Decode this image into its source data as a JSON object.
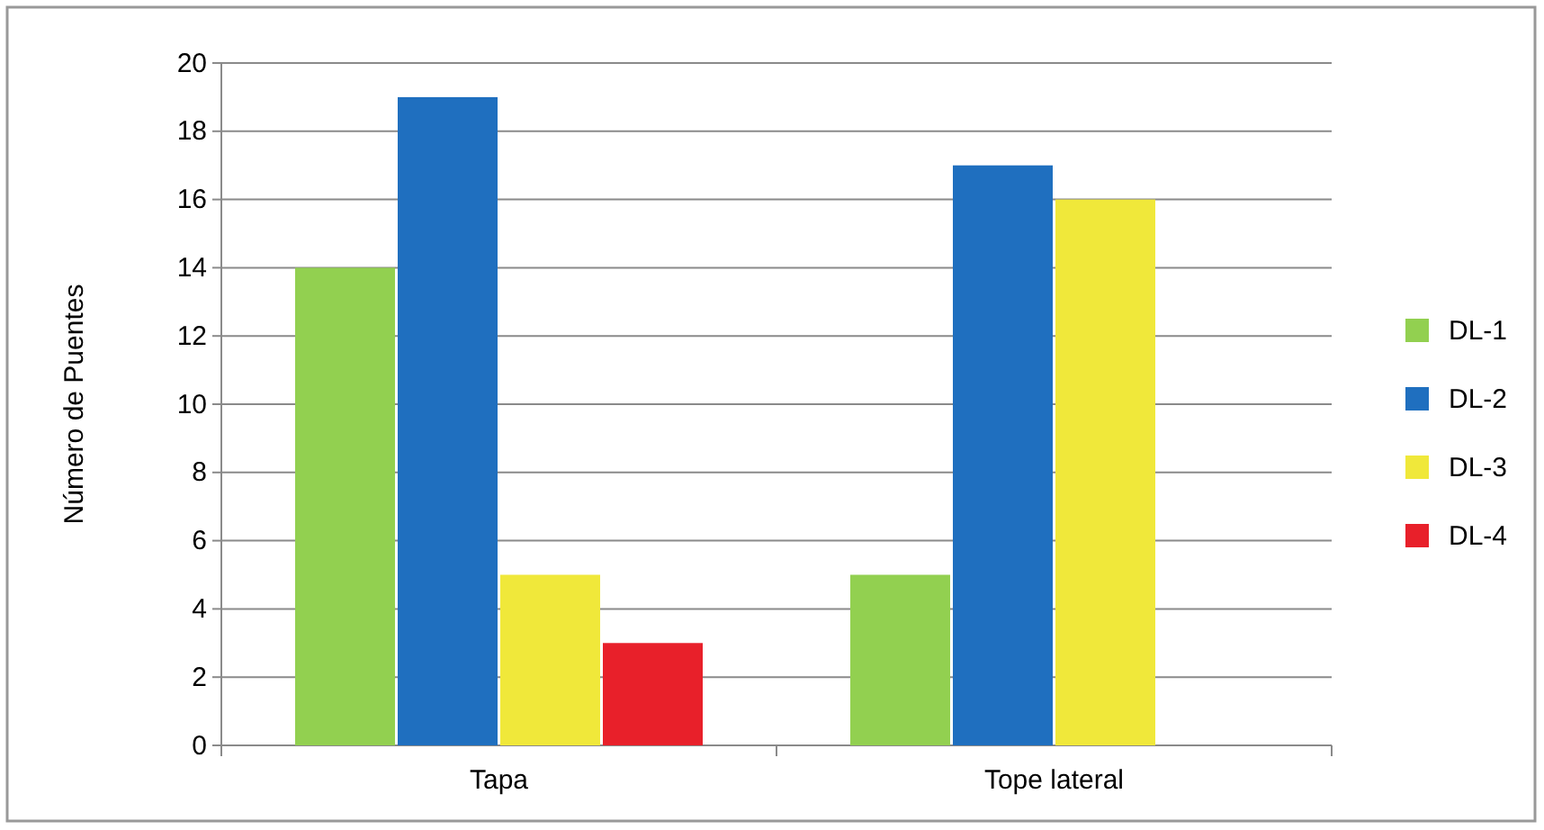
{
  "chart_data": {
    "type": "bar",
    "ylabel": "Número de Puentes",
    "categories": [
      "Tapa",
      "Tope lateral"
    ],
    "series": [
      {
        "name": "DL-1",
        "color": "#92d050",
        "values": [
          14,
          5
        ]
      },
      {
        "name": "DL-2",
        "color": "#1f6fbf",
        "values": [
          19,
          17
        ]
      },
      {
        "name": "DL-3",
        "color": "#f0e83a",
        "values": [
          5,
          16
        ]
      },
      {
        "name": "DL-4",
        "color": "#e8202a",
        "values": [
          3,
          null
        ]
      }
    ],
    "ylim": [
      0,
      20
    ],
    "yticks": [
      0,
      2,
      4,
      6,
      8,
      10,
      12,
      14,
      16,
      18,
      20
    ],
    "grid": "y",
    "legend": "right"
  }
}
